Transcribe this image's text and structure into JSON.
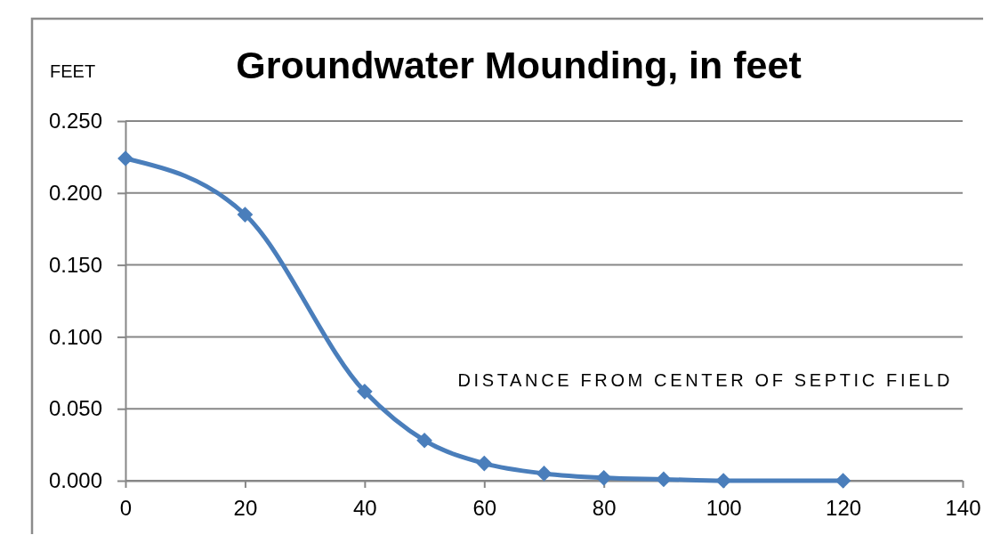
{
  "chart_data": {
    "type": "line",
    "title": "Groundwater Mounding, in feet",
    "ylabel": "FEET",
    "xlabel": "DISTANCE FROM CENTER OF SEPTIC FIELD",
    "x": [
      0,
      20,
      40,
      50,
      60,
      70,
      80,
      90,
      100,
      120
    ],
    "series": [
      {
        "color": "#4a7ebb",
        "values": [
          0.224,
          0.185,
          0.062,
          0.028,
          0.012,
          0.005,
          0.002,
          0.001,
          0.0,
          0.0
        ]
      }
    ],
    "xlim": [
      0,
      140
    ],
    "xticks": [
      0,
      20,
      40,
      60,
      80,
      100,
      120,
      140
    ],
    "ylim": [
      0,
      0.25
    ],
    "yticks": [
      {
        "value": 0,
        "label": "0.000"
      },
      {
        "value": 0.05,
        "label": "0.050"
      },
      {
        "value": 0.1,
        "label": "0.100"
      },
      {
        "value": 0.15,
        "label": "0.150"
      },
      {
        "value": 0.2,
        "label": "0.200"
      },
      {
        "value": 0.25,
        "label": "0.250"
      }
    ],
    "grid": "y",
    "marker": "diamond",
    "line_style": "solid"
  }
}
